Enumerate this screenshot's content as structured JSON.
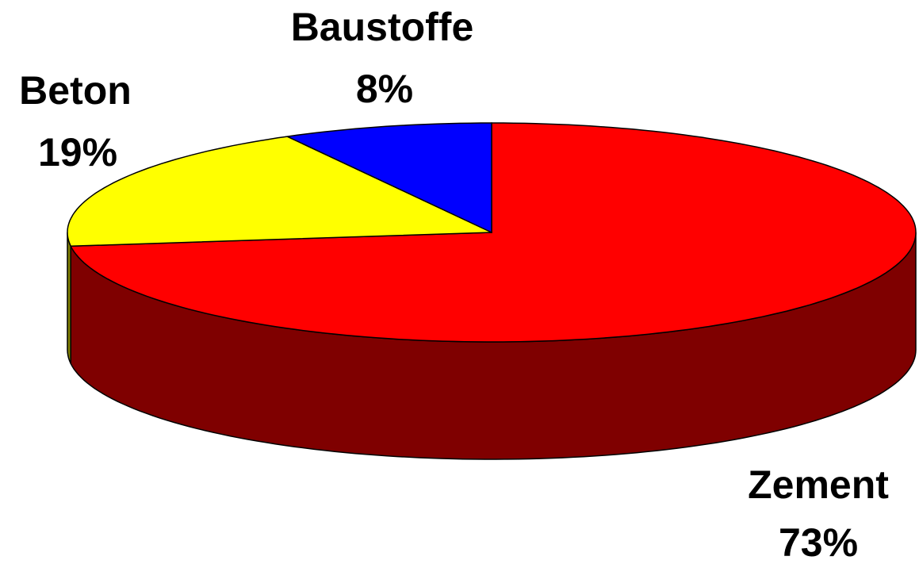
{
  "chart_data": {
    "type": "pie3d",
    "categories": [
      "Zement",
      "Beton",
      "Baustoffe"
    ],
    "values": [
      73,
      19,
      8
    ],
    "value_labels": [
      "73%",
      "19%",
      "8%"
    ],
    "colors": [
      "#ff0000",
      "#ffff00",
      "#0000ff"
    ],
    "side_colors": [
      "#7f0000",
      "#7f7f00",
      "#00007f"
    ]
  }
}
